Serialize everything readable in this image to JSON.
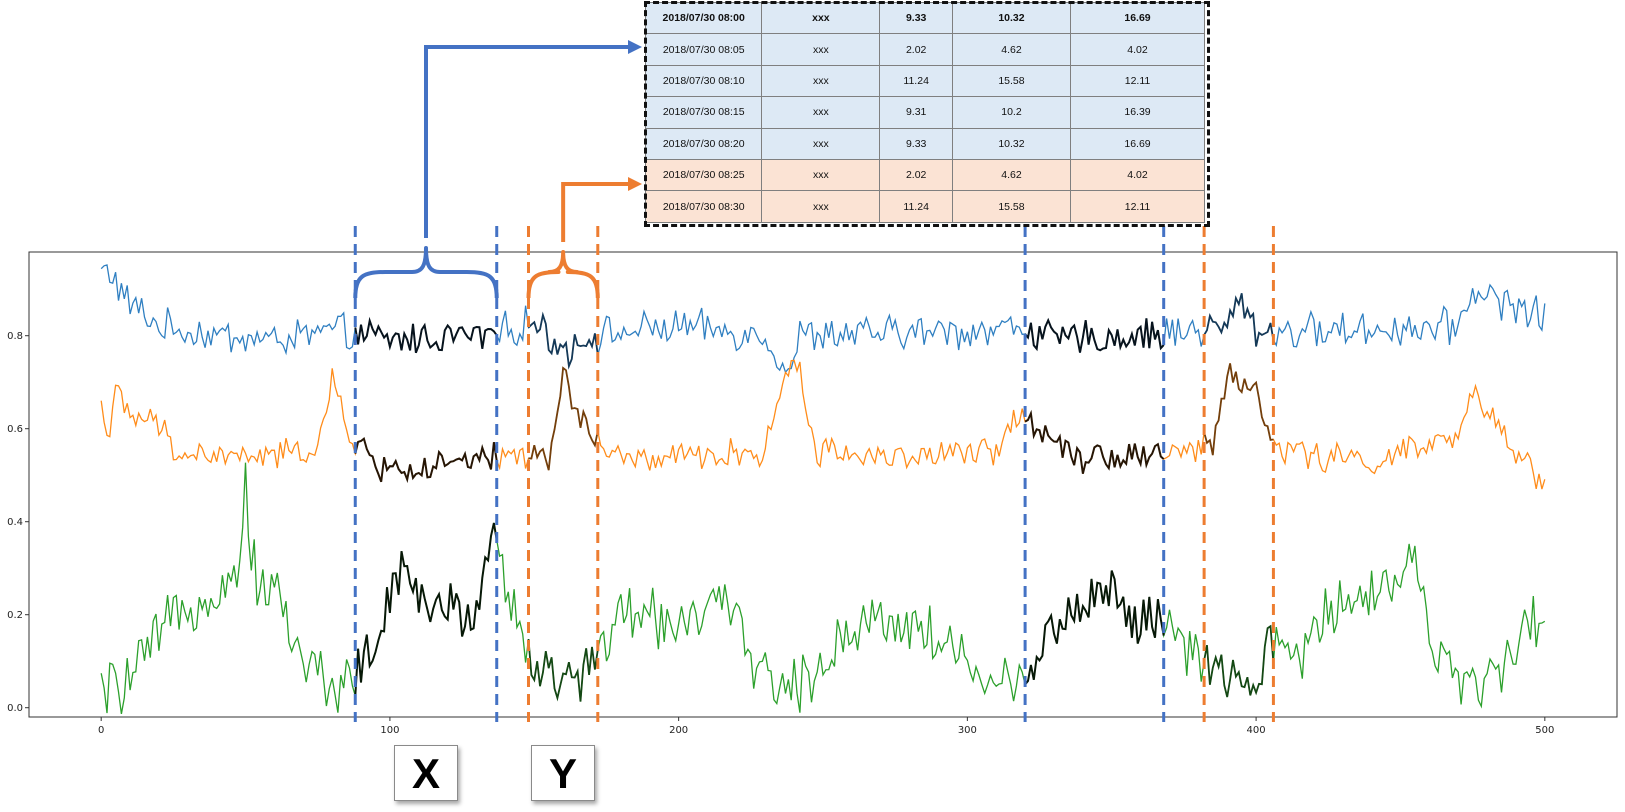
{
  "colors": {
    "series1": "#2f7fc1",
    "series2": "#ff8c1a",
    "series3": "#2ca02c",
    "window_blue": "#4472c4",
    "window_orange": "#ed7d31",
    "table_blue_row": "#dde9f5",
    "table_orange_row": "#fbe3d4"
  },
  "chart_data": {
    "type": "line",
    "xlim": [
      -25,
      525
    ],
    "ylim": [
      -0.02,
      0.98
    ],
    "x_ticks": [
      "0",
      "100",
      "200",
      "300",
      "400",
      "500"
    ],
    "y_ticks": [
      "0.0",
      "0.2",
      "0.4",
      "0.6",
      "0.8"
    ],
    "grid": false,
    "series": [
      {
        "color": "#2f7fc1",
        "base": 0.81,
        "noise": 0.03,
        "points": [
          [
            0,
            0.94
          ],
          [
            3,
            0.94
          ],
          [
            8,
            0.88
          ],
          [
            12,
            0.86
          ],
          [
            20,
            0.82
          ],
          [
            40,
            0.8
          ],
          [
            60,
            0.79
          ],
          [
            80,
            0.81
          ],
          [
            100,
            0.79
          ],
          [
            120,
            0.8
          ],
          [
            135,
            0.8
          ],
          [
            150,
            0.83
          ],
          [
            160,
            0.77
          ],
          [
            170,
            0.8
          ],
          [
            200,
            0.82
          ],
          [
            230,
            0.8
          ],
          [
            238,
            0.72
          ],
          [
            242,
            0.8
          ],
          [
            300,
            0.81
          ],
          [
            320,
            0.82
          ],
          [
            330,
            0.79
          ],
          [
            360,
            0.8
          ],
          [
            390,
            0.82
          ],
          [
            395,
            0.88
          ],
          [
            400,
            0.81
          ],
          [
            420,
            0.81
          ],
          [
            470,
            0.82
          ],
          [
            475,
            0.9
          ],
          [
            500,
            0.84
          ]
        ]
      },
      {
        "color": "#ff8c1a",
        "base": 0.55,
        "noise": 0.025,
        "points": [
          [
            0,
            0.66
          ],
          [
            2,
            0.58
          ],
          [
            5,
            0.69
          ],
          [
            8,
            0.63
          ],
          [
            20,
            0.61
          ],
          [
            25,
            0.55
          ],
          [
            40,
            0.54
          ],
          [
            60,
            0.54
          ],
          [
            75,
            0.56
          ],
          [
            80,
            0.7
          ],
          [
            85,
            0.6
          ],
          [
            95,
            0.52
          ],
          [
            110,
            0.51
          ],
          [
            130,
            0.53
          ],
          [
            150,
            0.55
          ],
          [
            155,
            0.52
          ],
          [
            160,
            0.72
          ],
          [
            165,
            0.63
          ],
          [
            175,
            0.55
          ],
          [
            185,
            0.53
          ],
          [
            230,
            0.55
          ],
          [
            236,
            0.7
          ],
          [
            240,
            0.76
          ],
          [
            248,
            0.55
          ],
          [
            280,
            0.54
          ],
          [
            310,
            0.55
          ],
          [
            318,
            0.64
          ],
          [
            325,
            0.6
          ],
          [
            340,
            0.54
          ],
          [
            370,
            0.55
          ],
          [
            385,
            0.56
          ],
          [
            390,
            0.72
          ],
          [
            395,
            0.7
          ],
          [
            400,
            0.68
          ],
          [
            405,
            0.57
          ],
          [
            420,
            0.54
          ],
          [
            440,
            0.53
          ],
          [
            470,
            0.58
          ],
          [
            475,
            0.67
          ],
          [
            485,
            0.6
          ],
          [
            495,
            0.51
          ],
          [
            500,
            0.49
          ]
        ]
      },
      {
        "color": "#2ca02c",
        "base": 0.18,
        "noise": 0.05,
        "points": [
          [
            0,
            0.03
          ],
          [
            10,
            0.06
          ],
          [
            20,
            0.15
          ],
          [
            30,
            0.22
          ],
          [
            40,
            0.26
          ],
          [
            48,
            0.28
          ],
          [
            50,
            0.55
          ],
          [
            52,
            0.3
          ],
          [
            60,
            0.25
          ],
          [
            70,
            0.1
          ],
          [
            80,
            0.05
          ],
          [
            88,
            0.07
          ],
          [
            95,
            0.14
          ],
          [
            105,
            0.3
          ],
          [
            113,
            0.22
          ],
          [
            130,
            0.2
          ],
          [
            136,
            0.42
          ],
          [
            140,
            0.25
          ],
          [
            150,
            0.1
          ],
          [
            160,
            0.04
          ],
          [
            170,
            0.1
          ],
          [
            180,
            0.2
          ],
          [
            200,
            0.19
          ],
          [
            215,
            0.22
          ],
          [
            225,
            0.12
          ],
          [
            235,
            0.04
          ],
          [
            245,
            0.05
          ],
          [
            255,
            0.15
          ],
          [
            270,
            0.2
          ],
          [
            285,
            0.17
          ],
          [
            300,
            0.1
          ],
          [
            310,
            0.04
          ],
          [
            318,
            0.05
          ],
          [
            325,
            0.14
          ],
          [
            335,
            0.2
          ],
          [
            350,
            0.26
          ],
          [
            360,
            0.18
          ],
          [
            370,
            0.17
          ],
          [
            380,
            0.1
          ],
          [
            390,
            0.05
          ],
          [
            400,
            0.05
          ],
          [
            405,
            0.13
          ],
          [
            415,
            0.12
          ],
          [
            430,
            0.24
          ],
          [
            450,
            0.27
          ],
          [
            455,
            0.35
          ],
          [
            460,
            0.15
          ],
          [
            470,
            0.04
          ],
          [
            480,
            0.06
          ],
          [
            490,
            0.15
          ],
          [
            500,
            0.18
          ]
        ]
      }
    ],
    "windows": [
      {
        "label": "X",
        "color": "#4472c4",
        "x_start": 88,
        "x_end": 137
      },
      {
        "label": "Y",
        "color": "#ed7d31",
        "x_start": 148,
        "x_end": 172
      },
      {
        "color": "#4472c4",
        "x_start": 320,
        "x_end": 368
      },
      {
        "color": "#ed7d31",
        "x_start": 382,
        "x_end": 406
      }
    ]
  },
  "table": {
    "rows": [
      {
        "style": "blue bold",
        "cells": [
          "2018/07/30 08:00",
          "xxx",
          "9.33",
          "10.32",
          "16.69"
        ]
      },
      {
        "style": "blue",
        "cells": [
          "2018/07/30 08:05",
          "xxx",
          "2.02",
          "4.62",
          "4.02"
        ]
      },
      {
        "style": "blue",
        "cells": [
          "2018/07/30 08:10",
          "xxx",
          "11.24",
          "15.58",
          "12.11"
        ]
      },
      {
        "style": "blue",
        "cells": [
          "2018/07/30 08:15",
          "xxx",
          "9.31",
          "10.2",
          "16.39"
        ]
      },
      {
        "style": "blue",
        "cells": [
          "2018/07/30 08:20",
          "xxx",
          "9.33",
          "10.32",
          "16.69"
        ]
      },
      {
        "style": "orange",
        "cells": [
          "2018/07/30 08:25",
          "xxx",
          "2.02",
          "4.62",
          "4.02"
        ]
      },
      {
        "style": "orange",
        "cells": [
          "2018/07/30 08:30",
          "xxx",
          "11.24",
          "15.58",
          "12.11"
        ]
      }
    ]
  },
  "labels": {
    "x_box": "X",
    "y_box": "Y"
  }
}
